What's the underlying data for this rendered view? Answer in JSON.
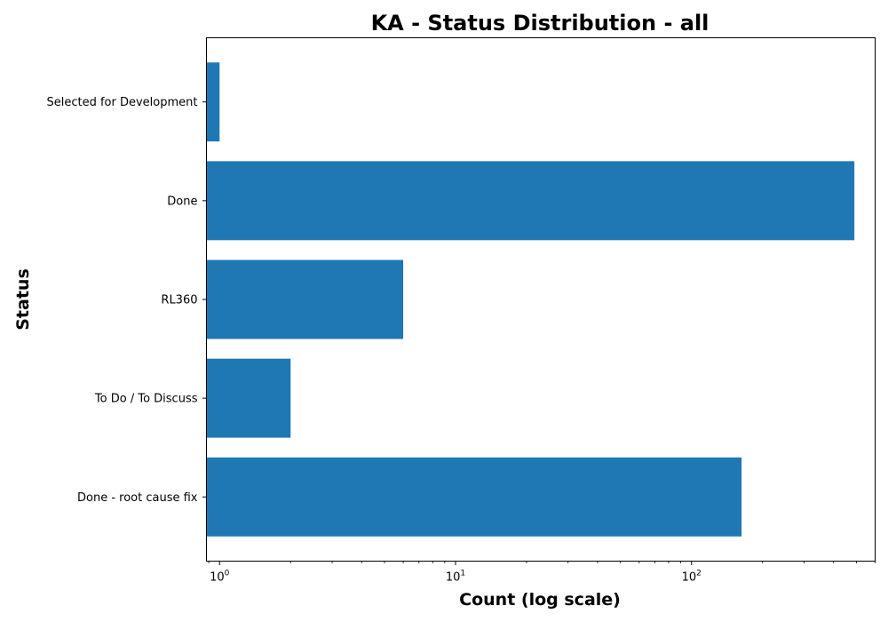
{
  "chart_data": {
    "type": "bar",
    "orientation": "horizontal",
    "title": "KA - Status Distribution - all",
    "xlabel": "Count (log scale)",
    "ylabel": "Status",
    "x_scale": "log",
    "xlim": [
      0.88,
      600
    ],
    "x_ticks": [
      {
        "value": 1,
        "base": "10",
        "exp": "0"
      },
      {
        "value": 10,
        "base": "10",
        "exp": "1"
      },
      {
        "value": 100,
        "base": "10",
        "exp": "2"
      }
    ],
    "categories": [
      "Selected for Development",
      "Done",
      "RL360",
      "To Do / To Discuss",
      "Done - root cause fix"
    ],
    "values": [
      1,
      490,
      6,
      2,
      163
    ],
    "color": "#1f77b4",
    "grid": false
  }
}
